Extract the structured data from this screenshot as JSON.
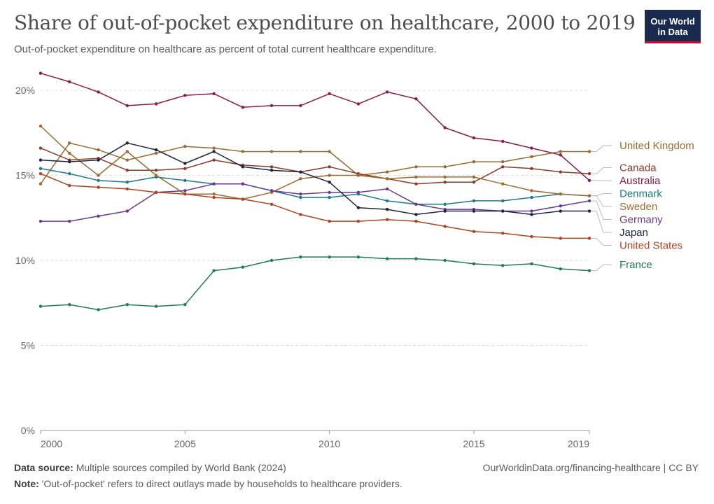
{
  "header": {
    "title": "Share of out-of-pocket expenditure on healthcare, 2000 to 2019",
    "subtitle": "Out-of-pocket expenditure on healthcare as percent of total current healthcare expenditure."
  },
  "logo": {
    "line1": "Our World",
    "line2": "in Data"
  },
  "footer": {
    "source_label": "Data source:",
    "source_text": "Multiple sources compiled by World Bank (2024)",
    "url": "OurWorldinData.org/financing-healthcare | CC BY",
    "note_label": "Note:",
    "note_text": "'Out-of-pocket' refers to direct outlays made by households to healthcare providers."
  },
  "chart_data": {
    "type": "line",
    "title": "Share of out-of-pocket expenditure on healthcare, 2000 to 2019",
    "xlabel": "",
    "ylabel": "",
    "x": [
      2000,
      2001,
      2002,
      2003,
      2004,
      2005,
      2006,
      2007,
      2008,
      2009,
      2010,
      2011,
      2012,
      2013,
      2014,
      2015,
      2016,
      2017,
      2018,
      2019
    ],
    "xlim": [
      2000,
      2019
    ],
    "ylim": [
      0,
      20
    ],
    "x_ticks": [
      {
        "value": 2000,
        "label": "2000"
      },
      {
        "value": 2005,
        "label": "2005"
      },
      {
        "value": 2010,
        "label": "2010"
      },
      {
        "value": 2015,
        "label": "2015"
      },
      {
        "value": 2019,
        "label": "2019"
      }
    ],
    "y_ticks": [
      {
        "value": 0,
        "label": "0%"
      },
      {
        "value": 5,
        "label": "5%"
      },
      {
        "value": 10,
        "label": "10%"
      },
      {
        "value": 15,
        "label": "15%"
      },
      {
        "value": 20,
        "label": "20%"
      }
    ],
    "grid": "horizontal-dashed",
    "legend": "right-end-labels",
    "series": [
      {
        "name": "United Kingdom",
        "color": "#9a6a2f",
        "values": [
          14.5,
          16.9,
          16.5,
          15.9,
          16.3,
          16.7,
          16.6,
          16.4,
          16.4,
          16.4,
          16.4,
          15.0,
          15.2,
          15.5,
          15.5,
          15.8,
          15.8,
          16.1,
          16.4,
          16.4
        ]
      },
      {
        "name": "Canada",
        "color": "#8a3b2c",
        "values": [
          16.6,
          15.9,
          16.0,
          15.3,
          15.3,
          15.4,
          15.9,
          15.6,
          15.5,
          15.2,
          15.5,
          15.1,
          14.8,
          14.5,
          14.6,
          14.6,
          15.5,
          15.4,
          15.2,
          15.1
        ]
      },
      {
        "name": "Australia",
        "color": "#8b1a4a",
        "values": [
          21.0,
          20.5,
          19.9,
          19.1,
          19.2,
          19.7,
          19.8,
          19.0,
          19.1,
          19.1,
          19.8,
          19.2,
          19.9,
          19.5,
          17.8,
          17.2,
          17.0,
          16.6,
          16.2,
          14.7
        ]
      },
      {
        "name": "Denmark",
        "color": "#1a7a8c",
        "values": [
          15.4,
          15.1,
          14.7,
          14.6,
          14.9,
          14.7,
          14.5,
          14.5,
          14.1,
          13.7,
          13.7,
          13.9,
          13.5,
          13.3,
          13.3,
          13.5,
          13.5,
          13.7,
          13.9,
          13.8
        ]
      },
      {
        "name": "Sweden",
        "color": "#9c6b30",
        "values": [
          17.9,
          16.3,
          15.0,
          16.4,
          15.0,
          13.9,
          13.9,
          13.6,
          14.0,
          14.8,
          15.0,
          15.0,
          14.8,
          14.9,
          14.9,
          14.9,
          14.5,
          14.1,
          13.9,
          13.8
        ]
      },
      {
        "name": "Germany",
        "color": "#6b3a8c",
        "values": [
          12.3,
          12.3,
          12.6,
          12.9,
          14.0,
          14.1,
          14.5,
          14.5,
          14.1,
          13.9,
          14.0,
          14.0,
          14.2,
          13.3,
          13.0,
          13.0,
          12.9,
          12.9,
          13.2,
          13.5
        ]
      },
      {
        "name": "Japan",
        "color": "#1a2540",
        "values": [
          15.9,
          15.8,
          15.9,
          16.9,
          16.5,
          15.7,
          16.4,
          15.5,
          15.3,
          15.2,
          14.6,
          13.1,
          13.0,
          12.7,
          12.9,
          12.9,
          12.9,
          12.7,
          12.9,
          12.9
        ]
      },
      {
        "name": "United States",
        "color": "#b2411e",
        "values": [
          15.1,
          14.4,
          14.3,
          14.2,
          14.0,
          13.9,
          13.7,
          13.6,
          13.3,
          12.7,
          12.3,
          12.3,
          12.4,
          12.3,
          12.0,
          11.7,
          11.6,
          11.4,
          11.3,
          11.3
        ]
      },
      {
        "name": "France",
        "color": "#1d7a5c",
        "values": [
          7.3,
          7.4,
          7.1,
          7.4,
          7.3,
          7.4,
          9.4,
          9.6,
          10.0,
          10.2,
          10.2,
          10.2,
          10.1,
          10.1,
          10.0,
          9.8,
          9.7,
          9.8,
          9.5,
          9.4
        ]
      }
    ]
  }
}
